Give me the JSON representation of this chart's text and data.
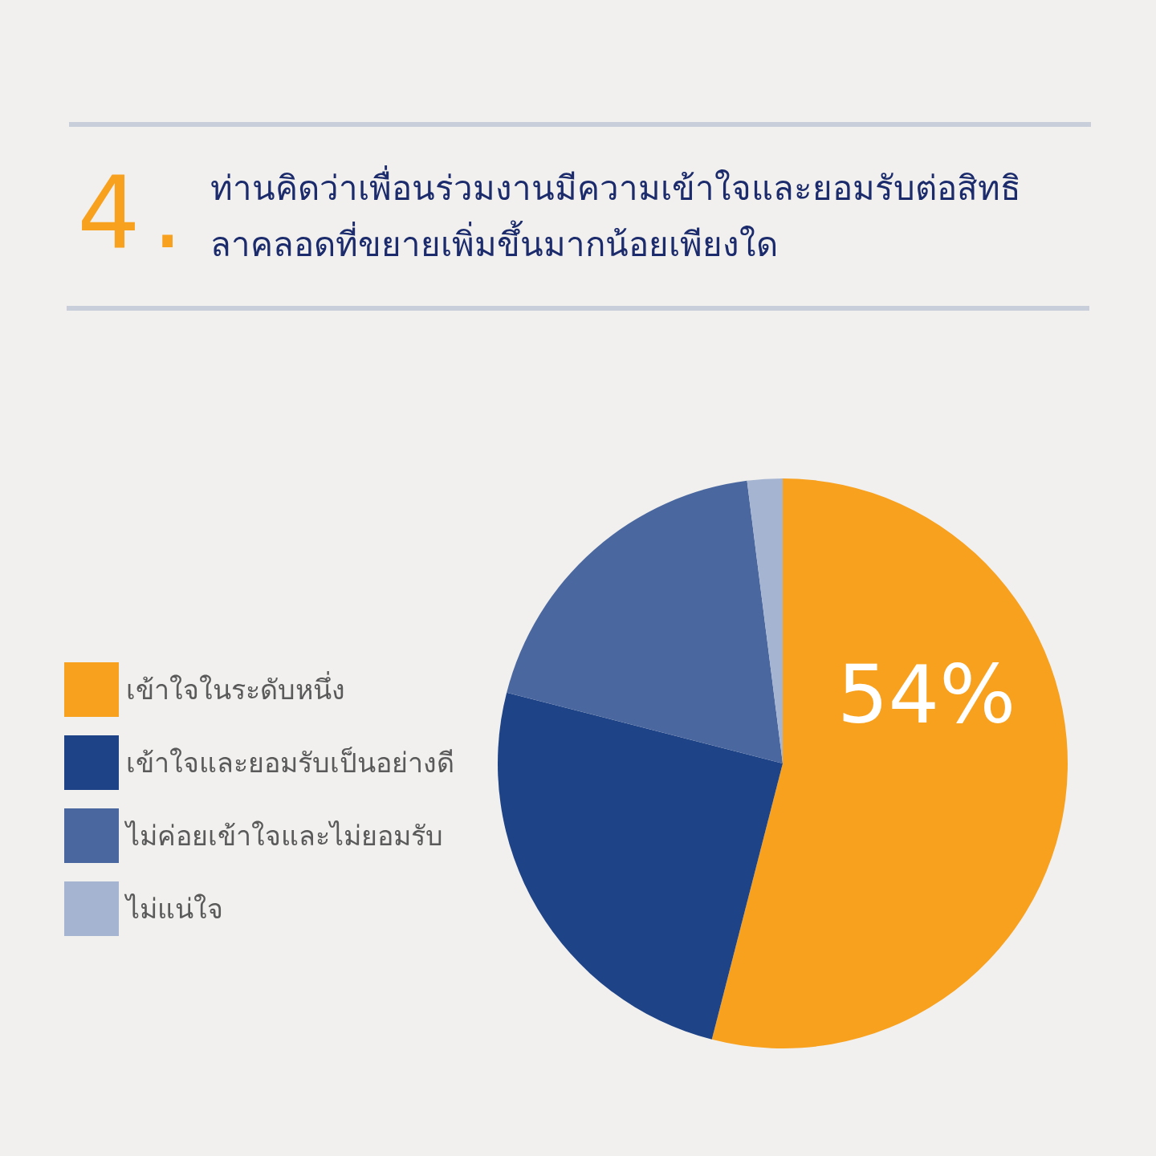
{
  "chart_data": {
    "type": "pie",
    "title": "ท่านคิดว่าเพื่อนร่วมงานมีความเข้าใจและยอมรับต่อสิทธิลาคลอดที่ขยายเพิ่มขึ้นมากน้อยเพียงใด",
    "annotations": [
      "4."
    ],
    "categories": [
      "เข้าใจในระดับหนึ่ง",
      "เข้าใจและยอมรับเป็นอย่างดี",
      "ไม่ค่อยเข้าใจและไม่ยอมรับ",
      "ไม่แน่ใจ"
    ],
    "values": [
      54,
      25,
      19,
      2
    ],
    "colors": [
      "#f8a11e",
      "#1e4387",
      "#4a689f",
      "#a5b4d1"
    ],
    "value_labels": [
      "54%",
      null,
      null,
      null
    ],
    "legend": "left"
  }
}
